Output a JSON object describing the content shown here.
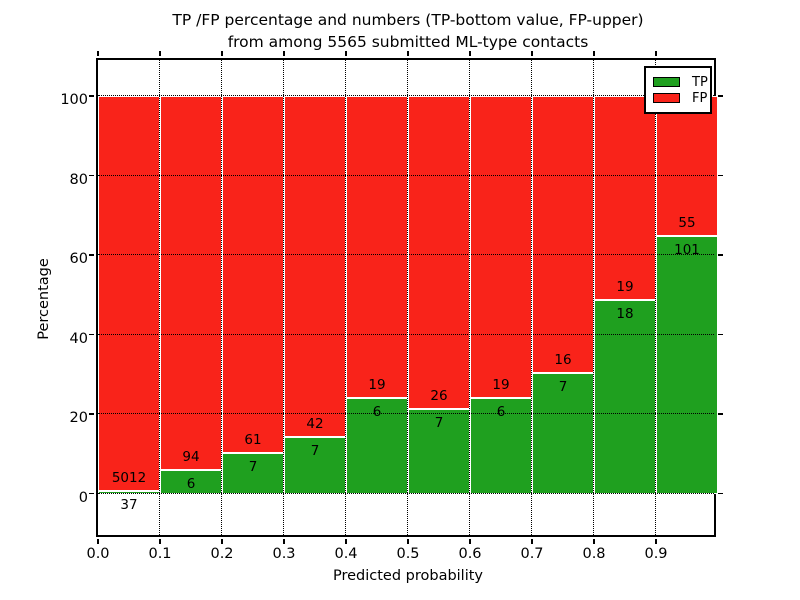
{
  "title": {
    "line1": "TP /FP percentage and numbers (TP-bottom value, FP-upper)",
    "line2": "from among 5565 submitted ML-type contacts"
  },
  "axes": {
    "ylabel": "Percentage",
    "xlabel": "Predicted probability",
    "ytick_labels": [
      "0",
      "20",
      "40",
      "60",
      "80",
      "100"
    ],
    "ytick_values": [
      0,
      20,
      40,
      60,
      80,
      100
    ],
    "xtick_labels": [
      "0.0",
      "0.1",
      "0.2",
      "0.3",
      "0.4",
      "0.5",
      "0.6",
      "0.7",
      "0.8",
      "0.9"
    ],
    "grid_style": "dotted"
  },
  "legend": {
    "items": [
      {
        "label": "TP",
        "color": "#1fa01f"
      },
      {
        "label": "FP",
        "color": "#f9231a"
      }
    ],
    "position": "upper right"
  },
  "chart_data": {
    "type": "bar",
    "stacked": true,
    "normalized_to_percent": true,
    "title": "TP /FP percentage and numbers (TP-bottom value, FP-upper) from among 5565 submitted ML-type contacts",
    "xlabel": "Predicted probability",
    "ylabel": "Percentage",
    "total_contacts": 5565,
    "bins": [
      "0.0-0.1",
      "0.1-0.2",
      "0.2-0.3",
      "0.3-0.4",
      "0.4-0.5",
      "0.5-0.6",
      "0.6-0.7",
      "0.7-0.8",
      "0.8-0.9",
      "0.9-1.0"
    ],
    "series": [
      {
        "name": "TP",
        "color": "#1fa01f",
        "counts": [
          37,
          6,
          7,
          7,
          6,
          7,
          6,
          7,
          18,
          101
        ]
      },
      {
        "name": "FP",
        "color": "#f9231a",
        "counts": [
          5012,
          94,
          61,
          42,
          19,
          26,
          19,
          16,
          19,
          55
        ]
      }
    ],
    "tp_percent": [
      0.73,
      6.0,
      10.29,
      14.29,
      24.0,
      21.21,
      24.0,
      30.43,
      48.65,
      64.74
    ],
    "xlim": [
      0.0,
      1.0
    ],
    "ylim": [
      -10.5,
      110
    ],
    "grid": true,
    "legend_position": "upper right"
  }
}
